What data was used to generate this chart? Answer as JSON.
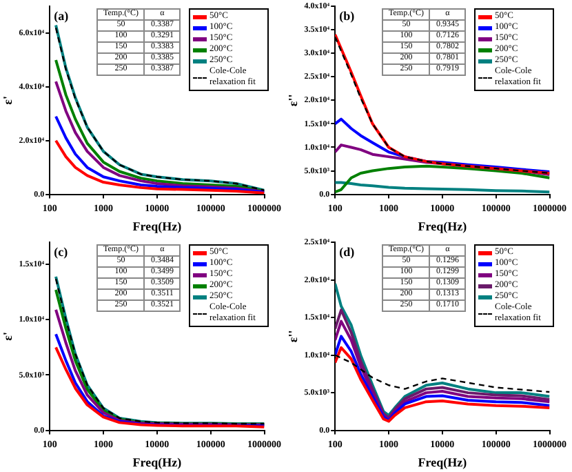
{
  "chart_data": [
    {
      "type": "line",
      "title": "(a)",
      "xlabel": "Freq(Hz)",
      "ylabel": "ε'",
      "log": "x",
      "legend": "top right",
      "marker": "none",
      "grid": false,
      "xlim": [
        100,
        1000000
      ],
      "xticks": [
        100,
        1000,
        10000,
        100000,
        1000000
      ],
      "ylim": [
        0,
        70000
      ],
      "yticks": [
        {
          "value": 0,
          "label": "0.0"
        },
        {
          "value": 20000,
          "label": "2.0x10⁴"
        },
        {
          "value": 40000,
          "label": "4.0x10⁴"
        },
        {
          "value": 60000,
          "label": "6.0x10⁴"
        }
      ],
      "annotations": [
        "Temp.(°C)",
        "α",
        "50",
        "0.3387",
        "100",
        "0.3291",
        "150",
        "0.3383",
        "200",
        "0.3385",
        "250",
        "0.3387"
      ],
      "series": [
        {
          "name": "50°C",
          "color": "#ff0000",
          "x": [
            130,
            200,
            300,
            500,
            1000,
            2000,
            5000,
            10000,
            30000,
            100000,
            300000,
            1000000
          ],
          "values": [
            20000,
            14000,
            10000,
            7000,
            4500,
            3500,
            2500,
            2000,
            1800,
            1500,
            1200,
            500
          ]
        },
        {
          "name": "100°C",
          "color": "#0000ff",
          "x": [
            130,
            200,
            300,
            500,
            1000,
            2000,
            5000,
            10000,
            30000,
            100000,
            300000,
            1000000
          ],
          "values": [
            29000,
            21000,
            15000,
            10000,
            6500,
            5000,
            3500,
            3000,
            2500,
            2200,
            1800,
            800
          ]
        },
        {
          "name": "150°C",
          "color": "#800080",
          "x": [
            130,
            200,
            300,
            500,
            1000,
            2000,
            5000,
            10000,
            30000,
            100000,
            300000,
            1000000
          ],
          "values": [
            42000,
            31000,
            23000,
            16000,
            10000,
            7000,
            5000,
            4000,
            3200,
            2800,
            2300,
            1000
          ]
        },
        {
          "name": "200°C",
          "color": "#008000",
          "x": [
            130,
            200,
            300,
            500,
            1000,
            2000,
            5000,
            10000,
            30000,
            100000,
            300000,
            1000000
          ],
          "values": [
            50000,
            37000,
            28000,
            19000,
            12000,
            8500,
            6000,
            5000,
            4000,
            3500,
            3000,
            1200
          ]
        },
        {
          "name": "250°C",
          "color": "#008080",
          "x": [
            130,
            200,
            300,
            500,
            1000,
            2000,
            5000,
            10000,
            30000,
            100000,
            300000,
            1000000
          ],
          "values": [
            63000,
            47000,
            36000,
            25000,
            16000,
            11000,
            7500,
            6500,
            5500,
            5000,
            4000,
            1500
          ]
        },
        {
          "name": "Cole-Cole relaxation fit",
          "color": "#000000",
          "line_style": "dashed",
          "x": [
            130,
            200,
            300,
            500,
            1000,
            2000,
            5000,
            10000,
            30000,
            100000,
            300000,
            1000000
          ],
          "values": [
            62000,
            46500,
            35500,
            25000,
            16000,
            11000,
            7500,
            6500,
            5500,
            5000,
            4000,
            1500
          ]
        }
      ]
    },
    {
      "type": "line",
      "title": "(b)",
      "xlabel": "Freq(Hz)",
      "ylabel": "ε''",
      "log": "x",
      "legend": "top right",
      "marker": "none",
      "grid": false,
      "xlim": [
        100,
        1000000
      ],
      "xticks": [
        100,
        1000,
        10000,
        100000,
        1000000
      ],
      "ylim": [
        0,
        40000
      ],
      "yticks": [
        {
          "value": 0,
          "label": "0.0"
        },
        {
          "value": 5000,
          "label": "5.0x10³"
        },
        {
          "value": 10000,
          "label": "1.0x10⁴"
        },
        {
          "value": 15000,
          "label": "1.5x10⁴"
        },
        {
          "value": 20000,
          "label": "2.0x10⁴"
        },
        {
          "value": 25000,
          "label": "2.5x10⁴"
        },
        {
          "value": 30000,
          "label": "3.0x10⁴"
        },
        {
          "value": 35000,
          "label": "3.5x10⁴"
        },
        {
          "value": 40000,
          "label": "4.0x10⁴"
        }
      ],
      "annotations": [
        "Temp.(°C)",
        "α",
        "50",
        "0.9345",
        "100",
        "0.7126",
        "150",
        "0.7802",
        "200",
        "0.7801",
        "250",
        "0.7919"
      ],
      "series": [
        {
          "name": "50°C",
          "color": "#ff0000",
          "x": [
            100,
            130,
            200,
            300,
            500,
            1000,
            2000,
            5000,
            10000,
            30000,
            100000,
            300000,
            1000000
          ],
          "values": [
            34000,
            31000,
            26000,
            21000,
            15000,
            10000,
            8000,
            7000,
            6500,
            6000,
            5500,
            5000,
            4500
          ]
        },
        {
          "name": "100°C",
          "color": "#0000ff",
          "x": [
            100,
            130,
            200,
            300,
            500,
            1000,
            2000,
            5000,
            10000,
            30000,
            100000,
            300000,
            1000000
          ],
          "values": [
            15000,
            16000,
            14000,
            12500,
            11000,
            9000,
            8000,
            7000,
            6800,
            6300,
            5800,
            5300,
            4800
          ]
        },
        {
          "name": "150°C",
          "color": "#800080",
          "x": [
            100,
            130,
            200,
            300,
            500,
            1000,
            2000,
            5000,
            10000,
            30000,
            100000,
            300000,
            1000000
          ],
          "values": [
            9000,
            10500,
            10000,
            9500,
            8500,
            8000,
            7500,
            6800,
            6500,
            6000,
            5500,
            5000,
            4200
          ]
        },
        {
          "name": "200°C",
          "color": "#008000",
          "x": [
            100,
            130,
            200,
            300,
            500,
            1000,
            2000,
            5000,
            10000,
            30000,
            100000,
            300000,
            1000000
          ],
          "values": [
            500,
            1000,
            3500,
            4500,
            5000,
            5500,
            5800,
            6000,
            5800,
            5500,
            5000,
            4500,
            3500
          ]
        },
        {
          "name": "250°C",
          "color": "#008080",
          "x": [
            100,
            130,
            200,
            300,
            500,
            1000,
            2000,
            5000,
            10000,
            30000,
            100000,
            300000,
            1000000
          ],
          "values": [
            2500,
            2500,
            2300,
            2000,
            1800,
            1500,
            1300,
            1200,
            1100,
            1000,
            800,
            700,
            500
          ]
        },
        {
          "name": "Cole-Cole relaxation fit",
          "color": "#000000",
          "line_style": "dashed",
          "x": [
            100,
            130,
            200,
            300,
            500,
            1000,
            2000,
            5000,
            10000,
            30000,
            100000,
            300000,
            1000000
          ],
          "values": [
            33500,
            30500,
            25500,
            20500,
            15000,
            10000,
            8000,
            7000,
            6500,
            6000,
            5500,
            5000,
            4500
          ]
        }
      ]
    },
    {
      "type": "line",
      "title": "(c)",
      "xlabel": "Freq(Hz)",
      "ylabel": "ε'",
      "log": "x",
      "legend": "top right",
      "marker": "none",
      "grid": false,
      "xlim": [
        100,
        1000000
      ],
      "xticks": [
        100,
        1000,
        10000,
        100000,
        1000000
      ],
      "ylim": [
        0,
        17000
      ],
      "yticks": [
        {
          "value": 0,
          "label": "0.0"
        },
        {
          "value": 5000,
          "label": "5.0x10³"
        },
        {
          "value": 10000,
          "label": "1.0x10⁴"
        },
        {
          "value": 15000,
          "label": "1.5x10⁴"
        }
      ],
      "annotations": [
        "Temp.(°C)",
        "α",
        "50",
        "0.3484",
        "100",
        "0.3499",
        "150",
        "0.3509",
        "200",
        "0.3511",
        "250",
        "0.3521"
      ],
      "series": [
        {
          "name": "50°C",
          "color": "#ff0000",
          "x": [
            130,
            200,
            300,
            500,
            1000,
            2000,
            5000,
            10000,
            30000,
            100000,
            300000,
            1000000
          ],
          "values": [
            7500,
            5500,
            3800,
            2300,
            1200,
            700,
            500,
            450,
            400,
            400,
            400,
            300
          ]
        },
        {
          "name": "100°C",
          "color": "#0000ff",
          "x": [
            130,
            200,
            300,
            500,
            1000,
            2000,
            5000,
            10000,
            30000,
            100000,
            300000,
            1000000
          ],
          "values": [
            8700,
            6300,
            4300,
            2600,
            1300,
            800,
            550,
            500,
            450,
            450,
            450,
            400
          ]
        },
        {
          "name": "150°C",
          "color": "#800080",
          "x": [
            130,
            200,
            300,
            500,
            1000,
            2000,
            5000,
            10000,
            30000,
            100000,
            300000,
            1000000
          ],
          "values": [
            10900,
            7900,
            5400,
            3200,
            1600,
            900,
            650,
            600,
            550,
            550,
            500,
            500
          ]
        },
        {
          "name": "200°C",
          "color": "#008000",
          "x": [
            130,
            200,
            300,
            500,
            1000,
            2000,
            5000,
            10000,
            30000,
            100000,
            300000,
            1000000
          ],
          "values": [
            12700,
            9200,
            6300,
            3700,
            1800,
            1000,
            700,
            650,
            600,
            600,
            550,
            550
          ]
        },
        {
          "name": "250°C",
          "color": "#008080",
          "x": [
            130,
            200,
            300,
            500,
            1000,
            2000,
            5000,
            10000,
            30000,
            100000,
            300000,
            1000000
          ],
          "values": [
            13900,
            10100,
            6900,
            4100,
            2000,
            1100,
            800,
            700,
            650,
            650,
            600,
            600
          ]
        },
        {
          "name": "Cole-Cole relaxation fit",
          "color": "#000000",
          "line_style": "dashed",
          "x": [
            130,
            200,
            300,
            500,
            1000,
            2000,
            5000,
            10000,
            30000,
            100000,
            300000,
            1000000
          ],
          "values": [
            13700,
            10000,
            6900,
            4100,
            2000,
            1100,
            800,
            700,
            650,
            650,
            600,
            600
          ]
        }
      ]
    },
    {
      "type": "line",
      "title": "(d)",
      "xlabel": "Freq(Hz)",
      "ylabel": "ε''",
      "log": "x",
      "legend": "top right",
      "marker": "none",
      "grid": false,
      "xlim": [
        100,
        1000000
      ],
      "xticks": [
        100,
        1000,
        10000,
        100000,
        1000000
      ],
      "ylim": [
        0,
        25000
      ],
      "yticks": [
        {
          "value": 0,
          "label": "0.0"
        },
        {
          "value": 5000,
          "label": "5.0x10³"
        },
        {
          "value": 10000,
          "label": "1.0x10⁴"
        },
        {
          "value": 15000,
          "label": "1.5x10⁴"
        },
        {
          "value": 20000,
          "label": "2.0x10⁴"
        },
        {
          "value": 25000,
          "label": "2.5x10⁴"
        }
      ],
      "annotations": [
        "Temp.(°C)",
        "α",
        "50",
        "0.1296",
        "100",
        "0.1299",
        "150",
        "0.1309",
        "200",
        "0.1313",
        "250",
        "0.1710"
      ],
      "series": [
        {
          "name": "50°C",
          "color": "#ff0000",
          "x": [
            100,
            130,
            200,
            300,
            500,
            800,
            1000,
            1300,
            2000,
            5000,
            10000,
            30000,
            100000,
            300000,
            1000000
          ],
          "values": [
            9000,
            11000,
            9500,
            6800,
            4000,
            1500,
            1200,
            2000,
            3000,
            3800,
            3900,
            3500,
            3300,
            3200,
            3000
          ]
        },
        {
          "name": "100°C",
          "color": "#0000ff",
          "x": [
            100,
            130,
            200,
            300,
            500,
            800,
            1000,
            1300,
            2000,
            5000,
            10000,
            30000,
            100000,
            300000,
            1000000
          ],
          "values": [
            10000,
            12500,
            10500,
            7500,
            4500,
            1800,
            1300,
            2300,
            3500,
            4500,
            4600,
            4000,
            3800,
            3700,
            3300
          ]
        },
        {
          "name": "150°C",
          "color": "#800080",
          "x": [
            100,
            130,
            200,
            300,
            500,
            800,
            1000,
            1300,
            2000,
            5000,
            10000,
            30000,
            100000,
            300000,
            1000000
          ],
          "values": [
            12000,
            14500,
            12000,
            8500,
            5000,
            2000,
            1500,
            2500,
            3800,
            5000,
            5200,
            4500,
            4300,
            4200,
            3800
          ]
        },
        {
          "name": "200°C",
          "color": "#6a1a6a",
          "x": [
            100,
            130,
            200,
            300,
            500,
            800,
            1000,
            1300,
            2000,
            5000,
            10000,
            30000,
            100000,
            300000,
            1000000
          ],
          "values": [
            13500,
            16000,
            13000,
            9200,
            5500,
            2200,
            1700,
            2800,
            4200,
            5500,
            5700,
            5000,
            4700,
            4600,
            4100
          ]
        },
        {
          "name": "250°C",
          "color": "#008080",
          "x": [
            100,
            130,
            200,
            300,
            500,
            800,
            1000,
            1300,
            2000,
            5000,
            10000,
            30000,
            100000,
            300000,
            1000000
          ],
          "values": [
            19500,
            16500,
            14000,
            10000,
            6000,
            2500,
            2000,
            3000,
            4500,
            6000,
            6300,
            5500,
            5000,
            5000,
            4500
          ]
        },
        {
          "name": "Cole-Cole relaxation fit",
          "color": "#000000",
          "line_style": "dashed",
          "x": [
            100,
            200,
            500,
            1000,
            2000,
            5000,
            10000,
            100000,
            1000000
          ],
          "values": [
            10000,
            9000,
            7000,
            6000,
            5500,
            6500,
            6900,
            5700,
            5100
          ]
        }
      ]
    }
  ]
}
